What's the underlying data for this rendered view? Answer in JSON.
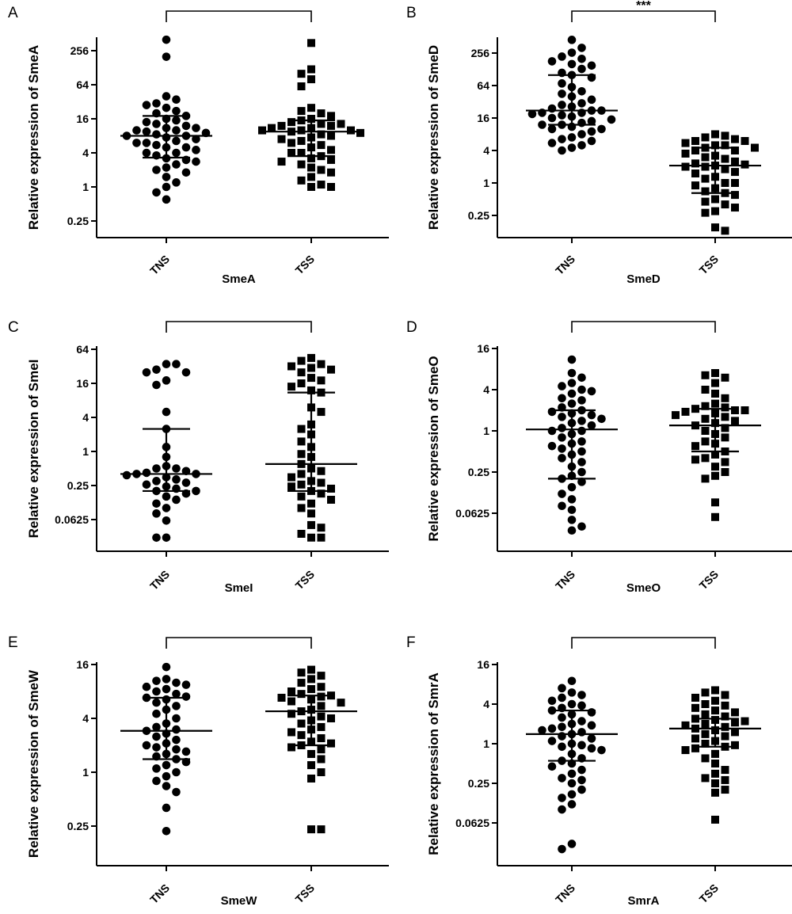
{
  "chart_data": [
    {
      "type": "scatter",
      "panel": "A",
      "title": "",
      "xlabel": "SmeA",
      "ylabel": "Relative expression of SmeA",
      "y_scale": "log2",
      "y_ticks": [
        0.25,
        1,
        4,
        16,
        64,
        256
      ],
      "y_tick_labels": [
        "0.25",
        "1",
        "4",
        "16",
        "64",
        "256"
      ],
      "ylim": [
        0.1,
        700
      ],
      "categories": [
        "TNS",
        "TSS"
      ],
      "significance": "",
      "series": [
        {
          "name": "TNS",
          "marker": "circle",
          "median": 8,
          "q1": 3.3,
          "q3": 18,
          "values": [
            400,
            200,
            40,
            35,
            30,
            28,
            25,
            22,
            20,
            18,
            16,
            15,
            14,
            13,
            12,
            11,
            11,
            10,
            10,
            9.5,
            9,
            8.5,
            8,
            8,
            7.5,
            7,
            6.5,
            6,
            6,
            5.5,
            5,
            5,
            4.5,
            4,
            4,
            3.6,
            3.2,
            3,
            2.8,
            2.5,
            2.2,
            2,
            1.8,
            1.5,
            1.2,
            1,
            0.8,
            0.6
          ]
        },
        {
          "name": "TSS",
          "marker": "square",
          "median": 9.5,
          "q1": 3.5,
          "q3": 15,
          "values": [
            350,
            120,
            100,
            80,
            60,
            25,
            22,
            20,
            18,
            16,
            15,
            14,
            13,
            13,
            12,
            12,
            11,
            11,
            10,
            10,
            10,
            9.5,
            9,
            8.5,
            8,
            7.5,
            7,
            6.5,
            6,
            5.5,
            5,
            4.5,
            4,
            4,
            3.5,
            3.2,
            3,
            2.8,
            2.5,
            2.2,
            2,
            1.8,
            1.5,
            1.3,
            1.1,
            1,
            1
          ]
        }
      ]
    },
    {
      "type": "scatter",
      "panel": "B",
      "title": "",
      "xlabel": "SmeD",
      "ylabel": "Relative expression of SmeD",
      "y_scale": "log2",
      "y_ticks": [
        0.25,
        1,
        4,
        16,
        64,
        256
      ],
      "y_tick_labels": [
        "0.25",
        "1",
        "4",
        "16",
        "64",
        "256"
      ],
      "ylim": [
        0.1,
        700
      ],
      "categories": [
        "TNS",
        "TSS"
      ],
      "significance": "***",
      "series": [
        {
          "name": "TNS",
          "marker": "circle",
          "median": 22,
          "q1": 12,
          "q3": 100,
          "values": [
            450,
            320,
            260,
            220,
            200,
            180,
            160,
            150,
            130,
            110,
            100,
            90,
            70,
            60,
            50,
            45,
            40,
            35,
            30,
            28,
            26,
            24,
            22,
            22,
            20,
            20,
            19,
            18,
            17,
            16,
            15,
            14,
            13,
            12,
            12,
            11,
            10,
            10,
            9,
            8,
            7,
            6.5,
            6,
            5.5,
            5,
            4.5,
            4
          ]
        },
        {
          "name": "TSS",
          "marker": "square",
          "median": 2.1,
          "q1": 0.65,
          "q3": 4.5,
          "values": [
            8,
            7.5,
            7,
            6.5,
            6,
            6,
            5.5,
            5,
            5,
            4.5,
            4.5,
            4,
            4,
            3.5,
            3.2,
            3,
            2.8,
            2.5,
            2.3,
            2.2,
            2.1,
            2,
            2,
            1.8,
            1.6,
            1.5,
            1.3,
            1.2,
            1,
            1,
            0.9,
            0.8,
            0.7,
            0.65,
            0.6,
            0.5,
            0.45,
            0.4,
            0.35,
            0.3,
            0.28,
            0.15,
            0.13
          ]
        }
      ]
    },
    {
      "type": "scatter",
      "panel": "C",
      "title": "",
      "xlabel": "SmeI",
      "ylabel": "Relative expression of SmeI",
      "y_scale": "log2",
      "y_ticks": [
        0.0625,
        0.25,
        1,
        4,
        16,
        64
      ],
      "y_tick_labels": [
        "0.0625",
        "0.25",
        "1",
        "4",
        "16",
        "64"
      ],
      "ylim": [
        0.02,
        75
      ],
      "categories": [
        "TNS",
        "TSS"
      ],
      "significance": "",
      "series": [
        {
          "name": "TNS",
          "marker": "circle",
          "median": 0.4,
          "q1": 0.2,
          "q3": 2.5,
          "values": [
            35,
            35,
            28,
            25,
            25,
            18,
            15,
            5,
            2.5,
            1.2,
            0.8,
            0.55,
            0.5,
            0.5,
            0.45,
            0.42,
            0.4,
            0.4,
            0.38,
            0.35,
            0.32,
            0.3,
            0.28,
            0.26,
            0.24,
            0.22,
            0.2,
            0.2,
            0.18,
            0.16,
            0.14,
            0.12,
            0.1,
            0.08,
            0.06,
            0.03,
            0.03
          ]
        },
        {
          "name": "TSS",
          "marker": "square",
          "median": 0.6,
          "q1": 0.2,
          "q3": 11,
          "values": [
            45,
            40,
            35,
            32,
            30,
            28,
            25,
            20,
            18,
            16,
            14,
            12,
            11,
            6,
            5,
            3,
            2.5,
            2,
            1.5,
            1.2,
            0.9,
            0.8,
            0.6,
            0.5,
            0.45,
            0.4,
            0.35,
            0.3,
            0.28,
            0.26,
            0.24,
            0.22,
            0.2,
            0.18,
            0.16,
            0.14,
            0.12,
            0.1,
            0.08,
            0.05,
            0.045,
            0.035,
            0.03,
            0.03
          ]
        }
      ]
    },
    {
      "type": "scatter",
      "panel": "D",
      "title": "",
      "xlabel": "SmeO",
      "ylabel": "Relative expression of SmeO",
      "y_scale": "log2",
      "y_ticks": [
        0.0625,
        0.25,
        1,
        4,
        16
      ],
      "y_tick_labels": [
        "0.0625",
        "0.25",
        "1",
        "4",
        "16"
      ],
      "ylim": [
        0.025,
        17
      ],
      "categories": [
        "TNS",
        "TSS"
      ],
      "significance": "",
      "series": [
        {
          "name": "TNS",
          "marker": "circle",
          "median": 1.05,
          "q1": 0.2,
          "q3": 2,
          "values": [
            11,
            7,
            6,
            5,
            4.5,
            4,
            3.8,
            3.5,
            3,
            2.8,
            2.5,
            2.2,
            2,
            1.9,
            1.8,
            1.7,
            1.6,
            1.5,
            1.4,
            1.3,
            1.2,
            1.1,
            1,
            1,
            0.9,
            0.8,
            0.7,
            0.65,
            0.6,
            0.55,
            0.5,
            0.45,
            0.4,
            0.35,
            0.3,
            0.25,
            0.22,
            0.2,
            0.18,
            0.15,
            0.12,
            0.1,
            0.08,
            0.07,
            0.05,
            0.04,
            0.035
          ]
        },
        {
          "name": "TSS",
          "marker": "square",
          "median": 1.2,
          "q1": 0.5,
          "q3": 2.1,
          "values": [
            7,
            6.5,
            6,
            5,
            4,
            3.5,
            3,
            2.5,
            2.3,
            2.2,
            2.1,
            2,
            2,
            1.9,
            1.8,
            1.7,
            1.6,
            1.5,
            1.4,
            1.3,
            1.2,
            1.1,
            1,
            0.9,
            0.8,
            0.7,
            0.65,
            0.6,
            0.5,
            0.45,
            0.4,
            0.38,
            0.35,
            0.3,
            0.25,
            0.22,
            0.2,
            0.09,
            0.055
          ]
        }
      ]
    },
    {
      "type": "scatter",
      "panel": "E",
      "title": "",
      "xlabel": "SmeW",
      "ylabel": "Relative expression of SmeW",
      "y_scale": "log2",
      "y_ticks": [
        0.25,
        1,
        4,
        16
      ],
      "y_tick_labels": [
        "0.25",
        "1",
        "4",
        "16"
      ],
      "ylim": [
        0.15,
        18
      ],
      "categories": [
        "TNS",
        "TSS"
      ],
      "significance": "",
      "series": [
        {
          "name": "TNS",
          "marker": "circle",
          "median": 2.9,
          "q1": 1.4,
          "q3": 6.8,
          "values": [
            15,
            11,
            10.5,
            10,
            9.5,
            9,
            8.5,
            8,
            7.5,
            7,
            6.8,
            6.5,
            6,
            5.5,
            5,
            4.5,
            4,
            3.5,
            3.2,
            3,
            2.9,
            2.7,
            2.5,
            2.3,
            2.1,
            2,
            1.9,
            1.8,
            1.7,
            1.6,
            1.5,
            1.4,
            1.3,
            1.2,
            1.1,
            1,
            0.9,
            0.8,
            0.7,
            0.6,
            0.4,
            0.22
          ]
        },
        {
          "name": "TSS",
          "marker": "square",
          "median": 4.8,
          "q1": 2,
          "q3": 7.2,
          "values": [
            14,
            13,
            12,
            11,
            10,
            9,
            8.5,
            8,
            7.5,
            7.2,
            7,
            6.8,
            6.5,
            6.2,
            6,
            5.5,
            5,
            4.8,
            4.5,
            4.2,
            4,
            3.8,
            3.5,
            3.2,
            3,
            2.8,
            2.6,
            2.4,
            2.2,
            2.1,
            2,
            1.9,
            1.8,
            1.6,
            1.4,
            1.2,
            1,
            0.85,
            0.23,
            0.23
          ]
        }
      ]
    },
    {
      "type": "scatter",
      "panel": "F",
      "title": "",
      "xlabel": "SmrA",
      "ylabel": "Relative expression of SmrA",
      "y_scale": "log2",
      "y_ticks": [
        0.0625,
        0.25,
        1,
        4,
        16
      ],
      "y_tick_labels": [
        "0.0625",
        "0.25",
        "1",
        "4",
        "16"
      ],
      "ylim": [
        0.02,
        17
      ],
      "categories": [
        "TNS",
        "TSS"
      ],
      "significance": "",
      "series": [
        {
          "name": "TNS",
          "marker": "circle",
          "median": 1.4,
          "q1": 0.55,
          "q3": 3.2,
          "values": [
            9,
            7,
            6,
            5.5,
            5,
            4.5,
            4,
            3.8,
            3.5,
            3.2,
            3,
            2.8,
            2.5,
            2.2,
            2,
            1.9,
            1.8,
            1.7,
            1.6,
            1.5,
            1.4,
            1.3,
            1.2,
            1.1,
            1,
            0.95,
            0.9,
            0.85,
            0.8,
            0.7,
            0.6,
            0.55,
            0.5,
            0.45,
            0.4,
            0.35,
            0.3,
            0.28,
            0.25,
            0.2,
            0.17,
            0.15,
            0.12,
            0.1,
            0.03,
            0.025
          ]
        },
        {
          "name": "TSS",
          "marker": "square",
          "median": 1.7,
          "q1": 0.9,
          "q3": 2.4,
          "values": [
            6.5,
            6,
            5.5,
            5,
            4.5,
            4,
            3.8,
            3.5,
            3.2,
            3,
            2.8,
            2.6,
            2.4,
            2.3,
            2.2,
            2.1,
            2,
            1.9,
            1.8,
            1.7,
            1.6,
            1.5,
            1.4,
            1.3,
            1.2,
            1.1,
            1,
            0.95,
            0.9,
            0.85,
            0.8,
            0.7,
            0.6,
            0.5,
            0.4,
            0.35,
            0.3,
            0.28,
            0.25,
            0.2,
            0.18,
            0.07
          ]
        }
      ]
    }
  ]
}
